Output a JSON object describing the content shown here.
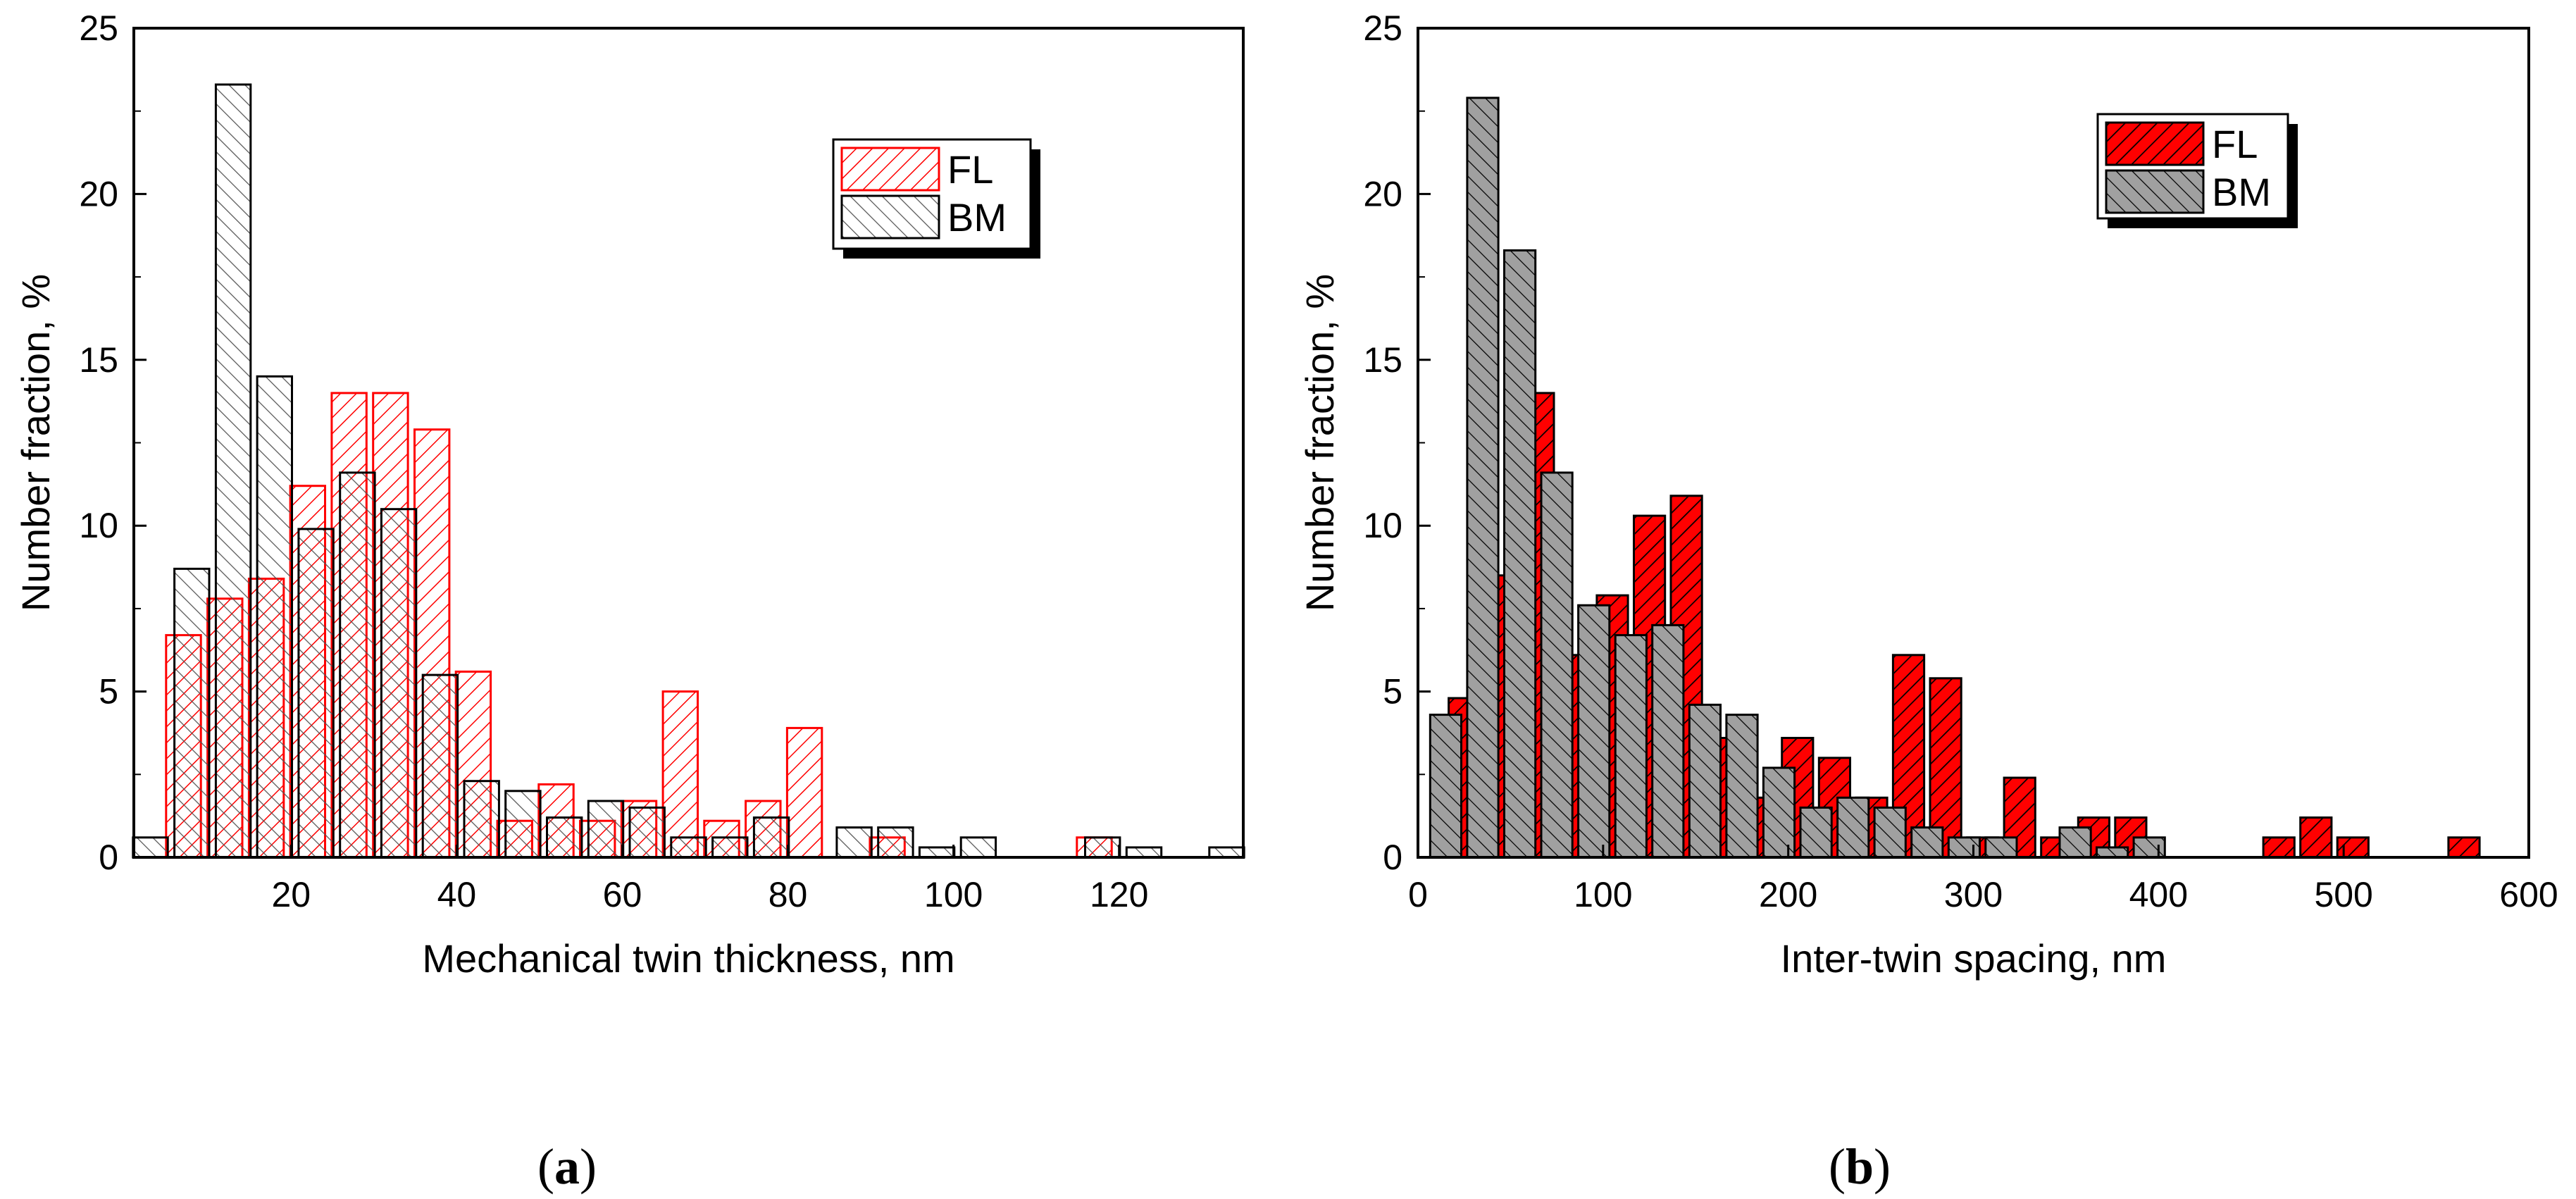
{
  "chart_data": [
    {
      "panel": "a",
      "type": "bar",
      "caption_open": "(",
      "caption_letter": "a",
      "caption_close": ")",
      "xlabel": "Mechanical twin thickness, nm",
      "ylabel": "Number fraction, %",
      "xlim": [
        1,
        135
      ],
      "ylim": [
        0,
        25
      ],
      "xticks": [
        20,
        40,
        60,
        80,
        100,
        120
      ],
      "yticks": [
        0,
        5,
        10,
        15,
        20,
        25
      ],
      "bin_width": 5,
      "style": "hatched-outline",
      "legend": [
        "FL",
        "BM"
      ],
      "series": [
        {
          "name": "FL",
          "color": "#ff0000",
          "x": [
            7,
            12,
            17,
            22,
            27,
            32,
            37,
            42,
            47,
            52,
            57,
            62,
            67,
            72,
            77,
            82,
            92,
            117
          ],
          "values": [
            6.7,
            7.8,
            8.4,
            11.2,
            14.0,
            14.0,
            12.9,
            5.6,
            1.1,
            2.2,
            1.1,
            1.7,
            5.0,
            1.1,
            1.7,
            3.9,
            0.6,
            0.6
          ]
        },
        {
          "name": "BM",
          "color": "#000000",
          "x": [
            3,
            8,
            13,
            18,
            23,
            28,
            33,
            38,
            43,
            48,
            53,
            58,
            63,
            68,
            73,
            78,
            88,
            93,
            98,
            103,
            118,
            123,
            133
          ],
          "values": [
            0.6,
            8.7,
            23.3,
            14.5,
            9.9,
            11.6,
            10.5,
            5.5,
            2.3,
            2.0,
            1.2,
            1.7,
            1.5,
            0.6,
            0.6,
            1.2,
            0.9,
            0.9,
            0.3,
            0.6,
            0.6,
            0.3,
            0.3
          ]
        }
      ]
    },
    {
      "panel": "b",
      "type": "bar",
      "caption_open": "(",
      "caption_letter": "b",
      "caption_close": ")",
      "xlabel": "Inter-twin spacing, nm",
      "ylabel": "Number fraction, %",
      "xlim": [
        0,
        600
      ],
      "ylim": [
        0,
        25
      ],
      "xticks": [
        0,
        100,
        200,
        300,
        400,
        500,
        600
      ],
      "yticks": [
        0,
        5,
        10,
        15,
        20,
        25
      ],
      "bin_width": 20,
      "style": "hatched-filled",
      "legend": [
        "FL",
        "BM"
      ],
      "series": [
        {
          "name": "FL",
          "color": "#ff0000",
          "x": [
            25,
            45,
            65,
            85,
            105,
            125,
            145,
            165,
            185,
            205,
            225,
            245,
            265,
            285,
            305,
            325,
            345,
            365,
            385,
            465,
            485,
            505,
            565
          ],
          "values": [
            4.8,
            8.5,
            14.0,
            6.1,
            7.9,
            10.3,
            10.9,
            3.6,
            1.8,
            3.6,
            3.0,
            1.8,
            6.1,
            5.4,
            0.6,
            2.4,
            0.6,
            1.2,
            1.2,
            0.6,
            1.2,
            0.6,
            0.6
          ]
        },
        {
          "name": "BM",
          "color": "#a0a0a0",
          "x": [
            15,
            35,
            55,
            75,
            95,
            115,
            135,
            155,
            175,
            195,
            215,
            235,
            255,
            275,
            295,
            315,
            355,
            375,
            395
          ],
          "values": [
            4.3,
            22.9,
            18.3,
            11.6,
            7.6,
            6.7,
            7.0,
            4.6,
            4.3,
            2.7,
            1.5,
            1.8,
            1.5,
            0.9,
            0.6,
            0.6,
            0.9,
            0.3,
            0.6
          ]
        }
      ]
    }
  ]
}
